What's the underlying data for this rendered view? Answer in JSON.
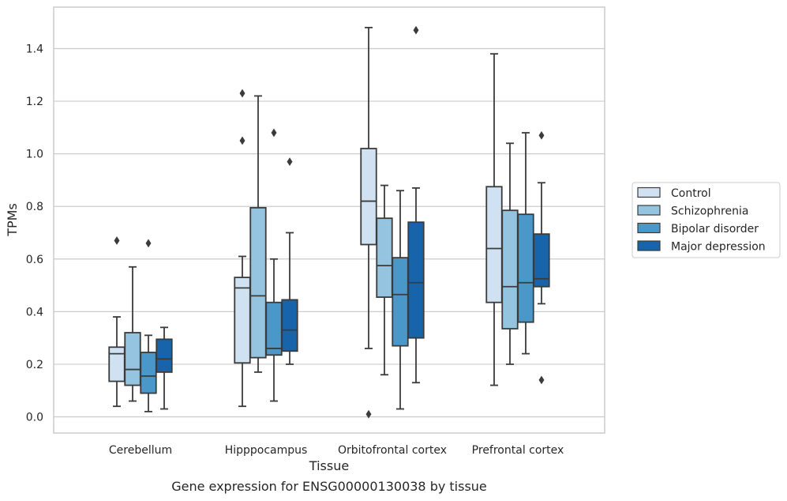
{
  "chart_data": {
    "type": "box",
    "xlabel": "Tissue",
    "ylabel": "TPMs",
    "ylim": [
      -0.06,
      1.56
    ],
    "yticks": [
      0.0,
      0.2,
      0.4,
      0.6,
      0.8,
      1.0,
      1.2,
      1.4
    ],
    "ytick_labels": [
      "0.0",
      "0.2",
      "0.4",
      "0.6",
      "0.8",
      "1.0",
      "1.2",
      "1.4"
    ],
    "grid": "horizontal",
    "legend_position": "right",
    "categories": [
      "Cerebellum",
      "Hipppocampus",
      "Orbitofrontal cortex",
      "Prefrontal cortex"
    ],
    "series": [
      {
        "name": "Control",
        "color": "#d0e1f2",
        "boxes": [
          {
            "q1": 0.135,
            "median": 0.24,
            "q3": 0.265,
            "whisker_low": 0.04,
            "whisker_high": 0.38,
            "outliers": [
              0.67
            ]
          },
          {
            "q1": 0.205,
            "median": 0.49,
            "q3": 0.53,
            "whisker_low": 0.04,
            "whisker_high": 0.61,
            "outliers": [
              1.05,
              1.23
            ]
          },
          {
            "q1": 0.655,
            "median": 0.82,
            "q3": 1.02,
            "whisker_low": 0.26,
            "whisker_high": 1.48,
            "outliers": [
              0.01
            ]
          },
          {
            "q1": 0.435,
            "median": 0.64,
            "q3": 0.875,
            "whisker_low": 0.12,
            "whisker_high": 1.38,
            "outliers": []
          }
        ]
      },
      {
        "name": "Schizophrenia",
        "color": "#94c4df",
        "boxes": [
          {
            "q1": 0.12,
            "median": 0.18,
            "q3": 0.32,
            "whisker_low": 0.06,
            "whisker_high": 0.57,
            "outliers": []
          },
          {
            "q1": 0.225,
            "median": 0.46,
            "q3": 0.795,
            "whisker_low": 0.17,
            "whisker_high": 1.22,
            "outliers": []
          },
          {
            "q1": 0.455,
            "median": 0.575,
            "q3": 0.755,
            "whisker_low": 0.16,
            "whisker_high": 0.88,
            "outliers": []
          },
          {
            "q1": 0.335,
            "median": 0.495,
            "q3": 0.785,
            "whisker_low": 0.2,
            "whisker_high": 1.04,
            "outliers": []
          }
        ]
      },
      {
        "name": "Bipolar disorder",
        "color": "#4a98c9",
        "boxes": [
          {
            "q1": 0.09,
            "median": 0.155,
            "q3": 0.245,
            "whisker_low": 0.02,
            "whisker_high": 0.31,
            "outliers": [
              0.66
            ]
          },
          {
            "q1": 0.235,
            "median": 0.26,
            "q3": 0.435,
            "whisker_low": 0.06,
            "whisker_high": 0.6,
            "outliers": [
              1.08
            ]
          },
          {
            "q1": 0.27,
            "median": 0.465,
            "q3": 0.605,
            "whisker_low": 0.03,
            "whisker_high": 0.86,
            "outliers": []
          },
          {
            "q1": 0.36,
            "median": 0.51,
            "q3": 0.77,
            "whisker_low": 0.24,
            "whisker_high": 1.08,
            "outliers": []
          }
        ]
      },
      {
        "name": "Major depression",
        "color": "#1764ab",
        "boxes": [
          {
            "q1": 0.17,
            "median": 0.22,
            "q3": 0.295,
            "whisker_low": 0.03,
            "whisker_high": 0.34,
            "outliers": []
          },
          {
            "q1": 0.25,
            "median": 0.33,
            "q3": 0.445,
            "whisker_low": 0.2,
            "whisker_high": 0.7,
            "outliers": [
              0.97
            ]
          },
          {
            "q1": 0.3,
            "median": 0.51,
            "q3": 0.74,
            "whisker_low": 0.13,
            "whisker_high": 0.87,
            "outliers": [
              1.47
            ]
          },
          {
            "q1": 0.495,
            "median": 0.525,
            "q3": 0.695,
            "whisker_low": 0.43,
            "whisker_high": 0.89,
            "outliers": [
              0.14,
              1.07
            ]
          }
        ]
      }
    ],
    "caption": "Gene expression for ENSG00000130038 by tissue"
  }
}
